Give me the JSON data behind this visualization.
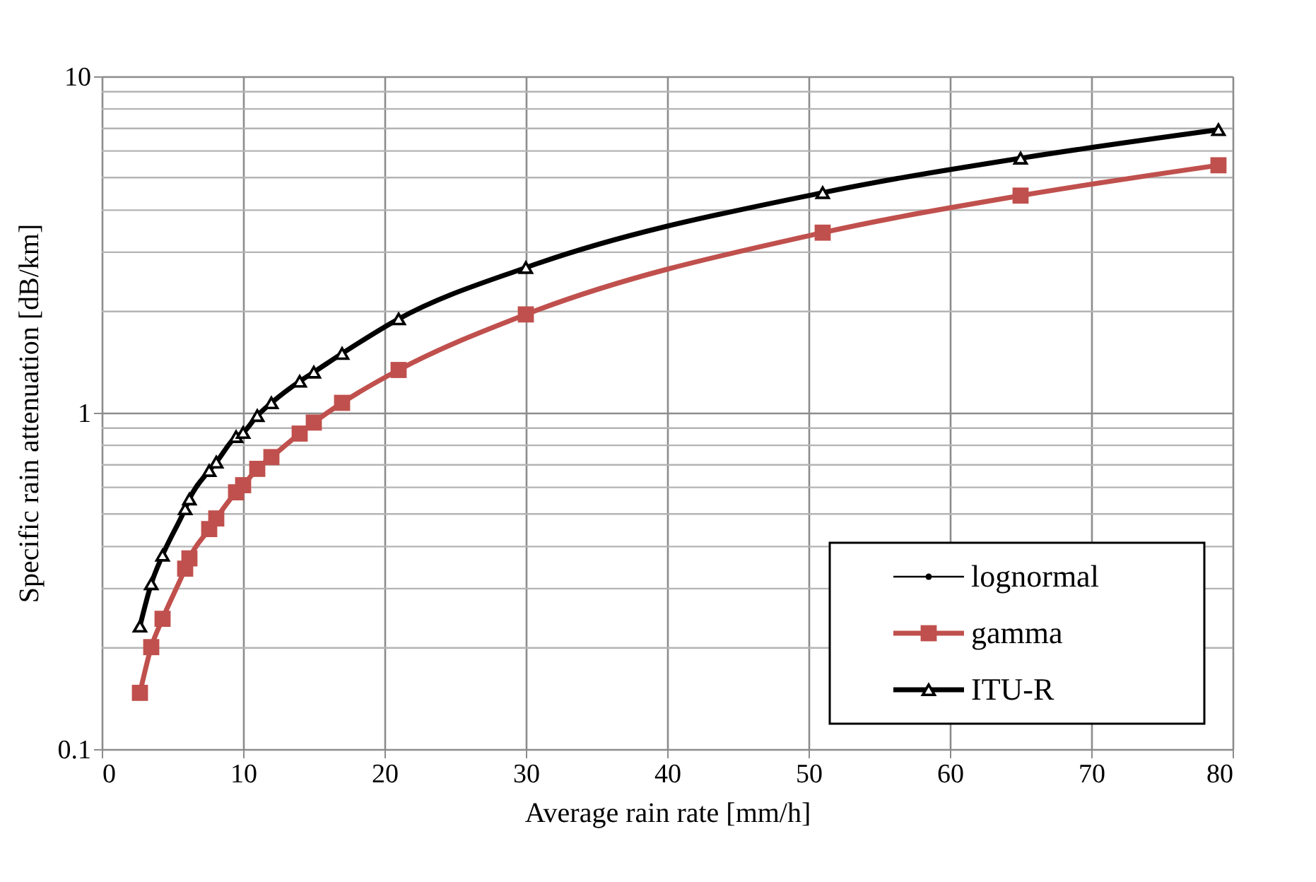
{
  "chart_data": {
    "type": "line",
    "xlabel": "Average rain rate [mm/h]",
    "ylabel": "Specific rain attenuation [dB/km]",
    "x": [
      2.7,
      3.5,
      4.3,
      5.9,
      6.2,
      7.6,
      8.1,
      9.5,
      10,
      11,
      12,
      14,
      15,
      17,
      21,
      30,
      51,
      65,
      79
    ],
    "series": [
      {
        "name": "lognormal",
        "color": "#000000",
        "marker": "circle",
        "values": [
          null,
          null,
          null,
          null,
          null,
          null,
          null,
          null,
          null,
          null,
          null,
          null,
          null,
          null,
          null,
          null,
          null,
          null,
          null
        ]
      },
      {
        "name": "gamma",
        "color": "#c0504d",
        "marker": "square",
        "values": [
          0.147,
          0.201,
          0.244,
          0.344,
          0.369,
          0.451,
          0.485,
          0.58,
          0.609,
          0.681,
          0.738,
          0.867,
          0.935,
          1.07,
          1.34,
          1.96,
          3.43,
          4.42,
          5.44
        ]
      },
      {
        "name": "ITU-R",
        "color": "#000000",
        "marker": "triangle",
        "values": [
          0.232,
          0.31,
          0.377,
          0.518,
          0.554,
          0.673,
          0.713,
          0.849,
          0.873,
          0.98,
          1.07,
          1.24,
          1.32,
          1.5,
          1.9,
          2.7,
          4.51,
          5.71,
          6.94
        ]
      }
    ],
    "xlim": [
      0,
      80
    ],
    "xticks": [
      0,
      10,
      20,
      30,
      40,
      50,
      60,
      70,
      80
    ],
    "ylim": [
      0.1,
      10
    ],
    "yticks": [
      0.1,
      1,
      10
    ],
    "log": "y",
    "grid": true,
    "legend": "bottom right",
    "line_style": "solid"
  }
}
